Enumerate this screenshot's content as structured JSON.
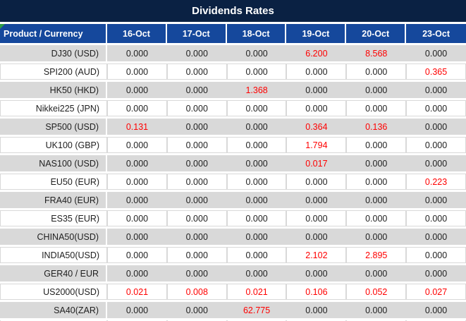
{
  "title": "Dividends Rates",
  "colors": {
    "title_bg": "#0a2143",
    "header_bg": "#15489c",
    "alt_row_bg": "#d9d9d9",
    "value_text": "#1f1f1f",
    "value_highlight": "#ff0000",
    "corner_marker_green": "#2f9e44"
  },
  "table": {
    "header": {
      "product_col": "Product / Currency",
      "dates": [
        "16-Oct",
        "17-Oct",
        "18-Oct",
        "19-Oct",
        "20-Oct",
        "23-Oct"
      ]
    },
    "rows": [
      {
        "product": "DJ30 (USD)",
        "values": [
          "0.000",
          "0.000",
          "0.000",
          "6.200",
          "8.568",
          "0.000"
        ],
        "red": [
          3,
          4
        ]
      },
      {
        "product": "SPI200 (AUD)",
        "values": [
          "0.000",
          "0.000",
          "0.000",
          "0.000",
          "0.000",
          "0.365"
        ],
        "red": [
          5
        ]
      },
      {
        "product": "HK50 (HKD)",
        "values": [
          "0.000",
          "0.000",
          "1.368",
          "0.000",
          "0.000",
          "0.000"
        ],
        "red": [
          2
        ]
      },
      {
        "product": "Nikkei225 (JPN)",
        "values": [
          "0.000",
          "0.000",
          "0.000",
          "0.000",
          "0.000",
          "0.000"
        ],
        "red": []
      },
      {
        "product": "SP500 (USD)",
        "values": [
          "0.131",
          "0.000",
          "0.000",
          "0.364",
          "0.136",
          "0.000"
        ],
        "red": [
          0,
          3,
          4
        ]
      },
      {
        "product": "UK100 (GBP)",
        "values": [
          "0.000",
          "0.000",
          "0.000",
          "1.794",
          "0.000",
          "0.000"
        ],
        "red": [
          3
        ]
      },
      {
        "product": "NAS100 (USD)",
        "values": [
          "0.000",
          "0.000",
          "0.000",
          "0.017",
          "0.000",
          "0.000"
        ],
        "red": [
          3
        ]
      },
      {
        "product": "EU50 (EUR)",
        "values": [
          "0.000",
          "0.000",
          "0.000",
          "0.000",
          "0.000",
          "0.223"
        ],
        "red": [
          5
        ]
      },
      {
        "product": "FRA40 (EUR)",
        "values": [
          "0.000",
          "0.000",
          "0.000",
          "0.000",
          "0.000",
          "0.000"
        ],
        "red": []
      },
      {
        "product": "ES35 (EUR)",
        "values": [
          "0.000",
          "0.000",
          "0.000",
          "0.000",
          "0.000",
          "0.000"
        ],
        "red": []
      },
      {
        "product": "CHINA50(USD)",
        "values": [
          "0.000",
          "0.000",
          "0.000",
          "0.000",
          "0.000",
          "0.000"
        ],
        "red": []
      },
      {
        "product": "INDIA50(USD)",
        "values": [
          "0.000",
          "0.000",
          "0.000",
          "2.102",
          "2.895",
          "0.000"
        ],
        "red": [
          3,
          4
        ]
      },
      {
        "product": "GER40 / EUR",
        "values": [
          "0.000",
          "0.000",
          "0.000",
          "0.000",
          "0.000",
          "0.000"
        ],
        "red": []
      },
      {
        "product": "US2000(USD)",
        "values": [
          "0.021",
          "0.008",
          "0.021",
          "0.106",
          "0.052",
          "0.027"
        ],
        "red": [
          0,
          1,
          2,
          3,
          4,
          5
        ]
      },
      {
        "product": "SA40(ZAR)",
        "values": [
          "0.000",
          "0.000",
          "62.775",
          "0.000",
          "0.000",
          "0.000"
        ],
        "red": [
          2
        ]
      }
    ]
  }
}
